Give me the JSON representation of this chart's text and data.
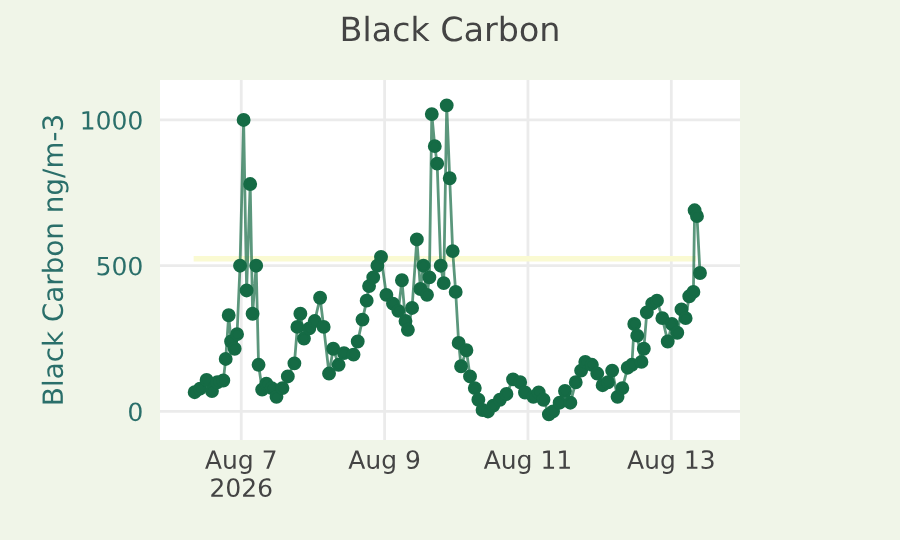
{
  "chart_data": {
    "type": "line",
    "title": "Black Carbon",
    "ylabel": "Black Carbon ng/m-3",
    "xlim": [
      "2026-08-05T20:48",
      "2026-08-13T23:00"
    ],
    "ylim": [
      -98,
      1137
    ],
    "xticks": [
      {
        "value": "2026-08-07",
        "label": "Aug 7\n2026"
      },
      {
        "value": "2026-08-09",
        "label": "Aug 9"
      },
      {
        "value": "2026-08-11",
        "label": "Aug 11"
      },
      {
        "value": "2026-08-13",
        "label": "Aug 13"
      }
    ],
    "yticks": [
      0,
      500,
      1000
    ],
    "grid": true,
    "marker": "circle",
    "line_style": "solid",
    "series": [
      {
        "color": "#fafad2",
        "marker": "none",
        "x": [
          "2026-08-06T09:00",
          "2026-08-13T07:24"
        ],
        "values": [
          524,
          524
        ]
      },
      {
        "color": "#156b45",
        "x": [
          "2026-08-06T08:24",
          "2026-08-06T10:12",
          "2026-08-06T12:24",
          "2026-08-06T14:12",
          "2026-08-06T16:00",
          "2026-08-06T18:00",
          "2026-08-06T18:48",
          "2026-08-06T19:48",
          "2026-08-06T20:36",
          "2026-08-06T21:48",
          "2026-08-06T22:36",
          "2026-08-06T23:36",
          "2026-08-07T00:48",
          "2026-08-07T01:48",
          "2026-08-07T03:00",
          "2026-08-07T03:48",
          "2026-08-07T05:00",
          "2026-08-07T05:48",
          "2026-08-07T07:00",
          "2026-08-07T08:24",
          "2026-08-07T10:12",
          "2026-08-07T11:48",
          "2026-08-07T13:48",
          "2026-08-07T15:36",
          "2026-08-07T17:48",
          "2026-08-07T18:48",
          "2026-08-07T19:48",
          "2026-08-07T21:00",
          "2026-08-07T22:48",
          "2026-08-08T00:36",
          "2026-08-08T02:24",
          "2026-08-08T03:36",
          "2026-08-08T05:24",
          "2026-08-08T06:48",
          "2026-08-08T08:36",
          "2026-08-08T10:24",
          "2026-08-08T13:36",
          "2026-08-08T15:00",
          "2026-08-08T16:36",
          "2026-08-08T18:00",
          "2026-08-08T18:48",
          "2026-08-08T20:12",
          "2026-08-08T21:36",
          "2026-08-08T22:48",
          "2026-08-09T00:36",
          "2026-08-09T02:48",
          "2026-08-09T04:36",
          "2026-08-09T05:48",
          "2026-08-09T07:00",
          "2026-08-09T07:48",
          "2026-08-09T09:12",
          "2026-08-09T10:48",
          "2026-08-09T12:00",
          "2026-08-09T13:00",
          "2026-08-09T14:12",
          "2026-08-09T15:00",
          "2026-08-09T15:48",
          "2026-08-09T16:48",
          "2026-08-09T17:36",
          "2026-08-09T18:48",
          "2026-08-09T19:48",
          "2026-08-09T20:48",
          "2026-08-09T21:48",
          "2026-08-09T22:48",
          "2026-08-09T23:48",
          "2026-08-10T00:48",
          "2026-08-10T01:36",
          "2026-08-10T03:24",
          "2026-08-10T04:36",
          "2026-08-10T06:12",
          "2026-08-10T07:24",
          "2026-08-10T08:48",
          "2026-08-10T10:36",
          "2026-08-10T12:24",
          "2026-08-10T14:36",
          "2026-08-10T16:48",
          "2026-08-10T19:00",
          "2026-08-10T21:24",
          "2026-08-10T23:00",
          "2026-08-11T01:48",
          "2026-08-11T03:36",
          "2026-08-11T05:12",
          "2026-08-11T07:00",
          "2026-08-11T08:24",
          "2026-08-11T10:36",
          "2026-08-11T12:24",
          "2026-08-11T14:12",
          "2026-08-11T16:00",
          "2026-08-11T17:48",
          "2026-08-11T19:12",
          "2026-08-11T21:24",
          "2026-08-11T23:12",
          "2026-08-12T01:00",
          "2026-08-12T02:48",
          "2026-08-12T04:12",
          "2026-08-12T06:00",
          "2026-08-12T07:36",
          "2026-08-12T09:24",
          "2026-08-12T10:48",
          "2026-08-12T11:36",
          "2026-08-12T12:36",
          "2026-08-12T14:00",
          "2026-08-12T14:48",
          "2026-08-12T15:48",
          "2026-08-12T17:36",
          "2026-08-12T19:12",
          "2026-08-12T21:00",
          "2026-08-12T22:48",
          "2026-08-13T00:12",
          "2026-08-13T02:00",
          "2026-08-13T03:24",
          "2026-08-13T04:48",
          "2026-08-13T06:00",
          "2026-08-13T07:24",
          "2026-08-13T07:48",
          "2026-08-13T08:36",
          "2026-08-13T09:36"
        ],
        "values": [
          66,
          78,
          108,
          70,
          100,
          106,
          180,
          330,
          240,
          215,
          265,
          500,
          1000,
          415,
          780,
          335,
          500,
          160,
          75,
          95,
          80,
          50,
          80,
          120,
          165,
          290,
          335,
          250,
          285,
          310,
          390,
          290,
          130,
          215,
          160,
          200,
          195,
          240,
          315,
          380,
          430,
          460,
          500,
          530,
          400,
          370,
          345,
          450,
          310,
          280,
          355,
          590,
          420,
          500,
          400,
          460,
          1020,
          910,
          850,
          500,
          440,
          1050,
          800,
          550,
          410,
          235,
          155,
          210,
          120,
          80,
          40,
          5,
          0,
          20,
          40,
          60,
          110,
          100,
          65,
          50,
          65,
          40,
          -10,
          0,
          30,
          70,
          30,
          100,
          140,
          170,
          160,
          130,
          90,
          100,
          140,
          50,
          80,
          150,
          160,
          300,
          260,
          170,
          215,
          340,
          370,
          380,
          320,
          240,
          300,
          270,
          350,
          320,
          395,
          410,
          690,
          670,
          475
        ]
      }
    ]
  }
}
